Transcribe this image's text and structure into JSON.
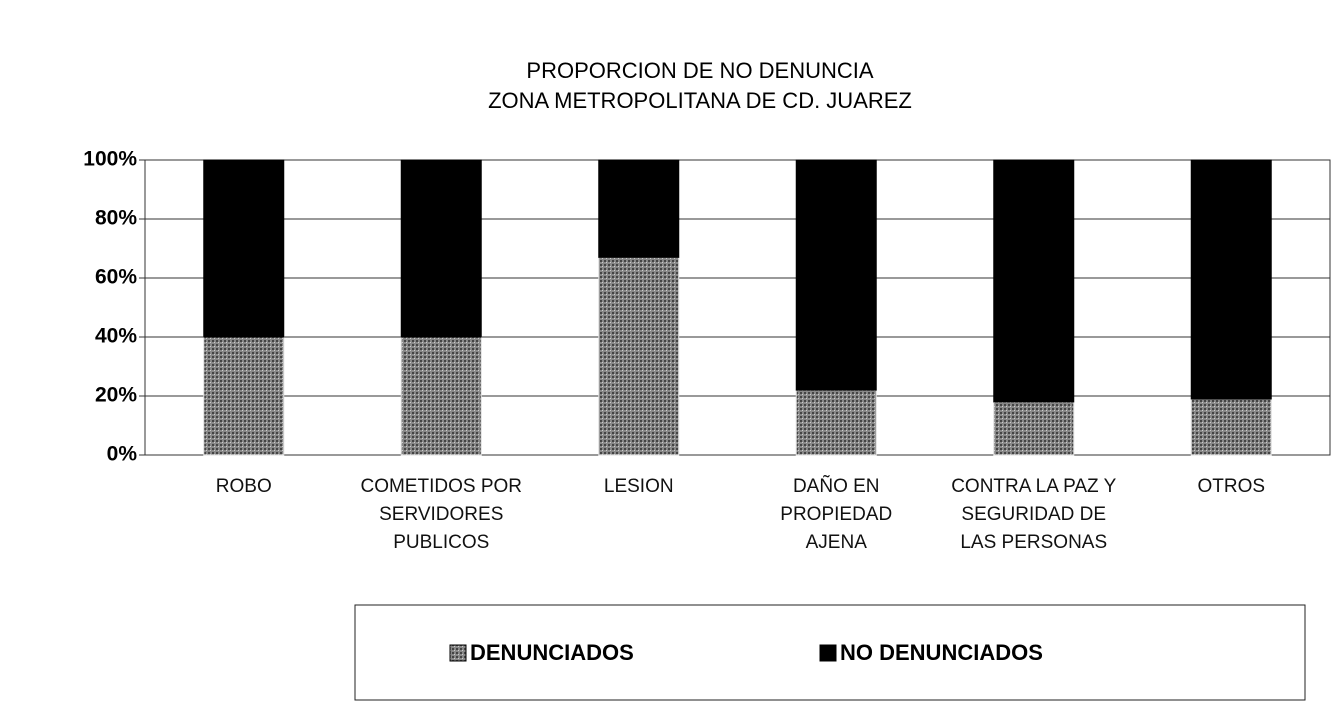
{
  "chart_data": {
    "type": "stacked_bar",
    "title": "PROPORCION DE NO DENUNCIA",
    "subtitle": "ZONA METROPOLITANA DE CD. JUAREZ",
    "categories": [
      "ROBO",
      "COMETIDOS POR SERVIDORES PUBLICOS",
      "LESION",
      "DAÑO EN PROPIEDAD AJENA",
      "CONTRA LA PAZ Y SEGURIDAD DE LAS PERSONAS",
      "OTROS"
    ],
    "series": [
      {
        "name": "DENUNCIADOS",
        "color": "#7a7a7a",
        "values": [
          40,
          40,
          67,
          22,
          18,
          19
        ]
      },
      {
        "name": "NO DENUNCIADOS",
        "color": "#000000",
        "values": [
          60,
          60,
          33,
          78,
          82,
          81
        ]
      }
    ],
    "ylim": [
      0,
      100
    ],
    "yticks": [
      {
        "value": 0,
        "label": "0%"
      },
      {
        "value": 20,
        "label": "20%"
      },
      {
        "value": 40,
        "label": "40%"
      },
      {
        "value": 60,
        "label": "60%"
      },
      {
        "value": 80,
        "label": "80%"
      },
      {
        "value": 100,
        "label": "100%"
      }
    ],
    "grid": true
  }
}
